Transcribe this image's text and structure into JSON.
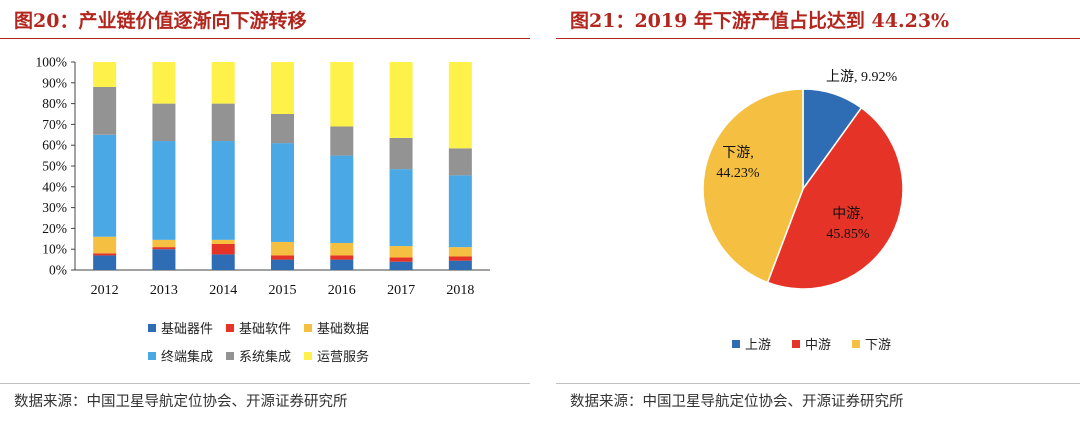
{
  "left": {
    "title": "图20：产业链价值逐渐向下游转移",
    "source": "数据来源：中国卫星导航定位协会、开源证券研究所"
  },
  "right": {
    "title": "图21：2019 年下游产值占比达到 44.23%",
    "source": "数据来源：中国卫星导航定位协会、开源证券研究所"
  },
  "chart_data": [
    {
      "type": "bar",
      "stacked": true,
      "categories": [
        "2012",
        "2013",
        "2014",
        "2015",
        "2016",
        "2017",
        "2018"
      ],
      "ylim": [
        0,
        100
      ],
      "yticks": [
        "0%",
        "10%",
        "20%",
        "30%",
        "40%",
        "50%",
        "60%",
        "70%",
        "80%",
        "90%",
        "100%"
      ],
      "series": [
        {
          "name": "基础器件",
          "color": "#2e6db4",
          "values": [
            7,
            10,
            7.5,
            5,
            5,
            4,
            4.5
          ]
        },
        {
          "name": "基础软件",
          "color": "#e53427",
          "values": [
            1,
            1,
            5,
            2,
            2,
            2,
            2
          ]
        },
        {
          "name": "基础数据",
          "color": "#f5c042",
          "values": [
            8,
            3.5,
            2,
            6.5,
            6,
            5.5,
            4.5
          ]
        },
        {
          "name": "终端集成",
          "color": "#4aa8e4",
          "values": [
            49,
            47.5,
            47.5,
            47.5,
            42,
            37,
            34.5
          ]
        },
        {
          "name": "系统集成",
          "color": "#939393",
          "values": [
            23,
            18,
            18,
            14,
            14,
            15,
            13
          ]
        },
        {
          "name": "运营服务",
          "color": "#fdf14a",
          "values": [
            12,
            20,
            20,
            25,
            31,
            36.5,
            41.5
          ]
        }
      ],
      "legend_position": "bottom"
    },
    {
      "type": "pie",
      "slices": [
        {
          "name": "上游",
          "value": 9.92,
          "label": "9.92%",
          "color": "#2e6db4"
        },
        {
          "name": "中游",
          "value": 45.85,
          "label": "45.85%",
          "color": "#e53427"
        },
        {
          "name": "下游",
          "value": 44.23,
          "label": "44.23%",
          "color": "#f5c042"
        }
      ],
      "legend_position": "bottom"
    }
  ]
}
